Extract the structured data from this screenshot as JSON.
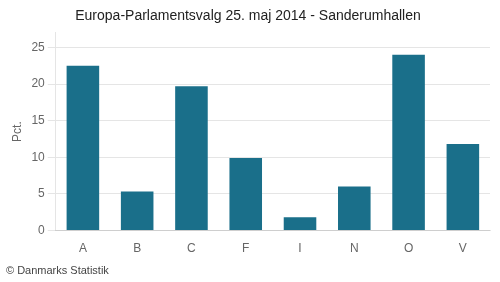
{
  "chart_data": {
    "type": "bar",
    "title": "Europa-Parlamentsvalg 25. maj 2014 - Sanderumhallen",
    "categories": [
      "A",
      "B",
      "C",
      "F",
      "I",
      "N",
      "O",
      "V"
    ],
    "values": [
      22.5,
      5.3,
      19.7,
      9.9,
      1.8,
      6.0,
      24.0,
      11.8
    ],
    "color": "#1a6f8a",
    "ylabel": "Pct.",
    "ylim": [
      0,
      27
    ],
    "yticks": [
      0,
      5,
      10,
      15,
      20,
      25
    ],
    "grid": true,
    "annotations": [
      "© Danmarks Statistik"
    ]
  }
}
